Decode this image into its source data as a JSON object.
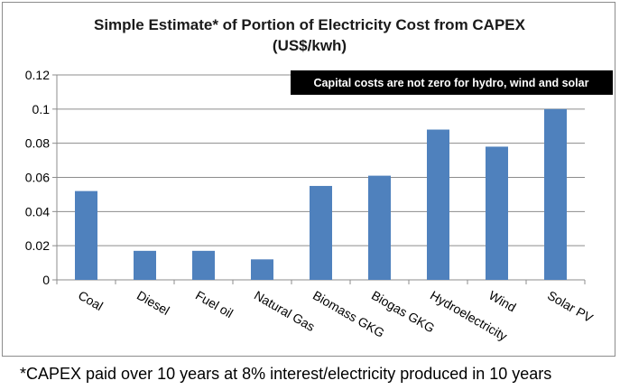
{
  "chart_data": {
    "type": "bar",
    "title": "Simple Estimate* of Portion of Electricity Cost from CAPEX",
    "subtitle": "(US$/kwh)",
    "categories": [
      "Coal",
      "Diesel",
      "Fuel oil",
      "Natural Gas",
      "Biomass GKG",
      "Biogas GKG",
      "Hydroelectricity",
      "Wind",
      "Solar PV"
    ],
    "values": [
      0.052,
      0.017,
      0.017,
      0.012,
      0.055,
      0.061,
      0.088,
      0.078,
      0.1
    ],
    "ylim": [
      0,
      0.12
    ],
    "yticks": [
      "0",
      "0.02",
      "0.04",
      "0.06",
      "0.08",
      "0.1",
      "0.12"
    ],
    "ytick_values": [
      0,
      0.02,
      0.04,
      0.06,
      0.08,
      0.1,
      0.12
    ],
    "xlabel": "",
    "ylabel": "",
    "grid": "horizontal",
    "bar_color": "#4f81bd",
    "annotation": "Capital costs are not zero for hydro, wind and solar"
  },
  "footnote": "*CAPEX paid over 10 years at 8% interest/electricity produced in 10 years"
}
